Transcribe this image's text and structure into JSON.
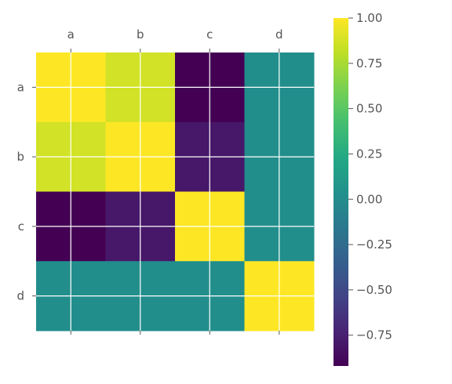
{
  "chart_data": {
    "type": "heatmap",
    "title": "",
    "xlabel": "",
    "ylabel": "",
    "x_categories": [
      "a",
      "b",
      "c",
      "d"
    ],
    "y_categories": [
      "a",
      "b",
      "c",
      "d"
    ],
    "values": [
      [
        1.0,
        0.87,
        -0.92,
        0.02
      ],
      [
        0.87,
        1.0,
        -0.8,
        0.02
      ],
      [
        -0.92,
        -0.8,
        1.0,
        0.02
      ],
      [
        0.02,
        0.02,
        0.02,
        1.0
      ]
    ],
    "colormap": "viridis",
    "value_range": [
      -0.92,
      1.0
    ],
    "grid": true,
    "x_tick_position": "top-and-bottom",
    "colorbar": {
      "placement": "right",
      "ticks": [
        "1.00",
        "0.75",
        "0.50",
        "0.25",
        "0.00",
        "−0.25",
        "−0.50",
        "−0.75"
      ]
    }
  }
}
